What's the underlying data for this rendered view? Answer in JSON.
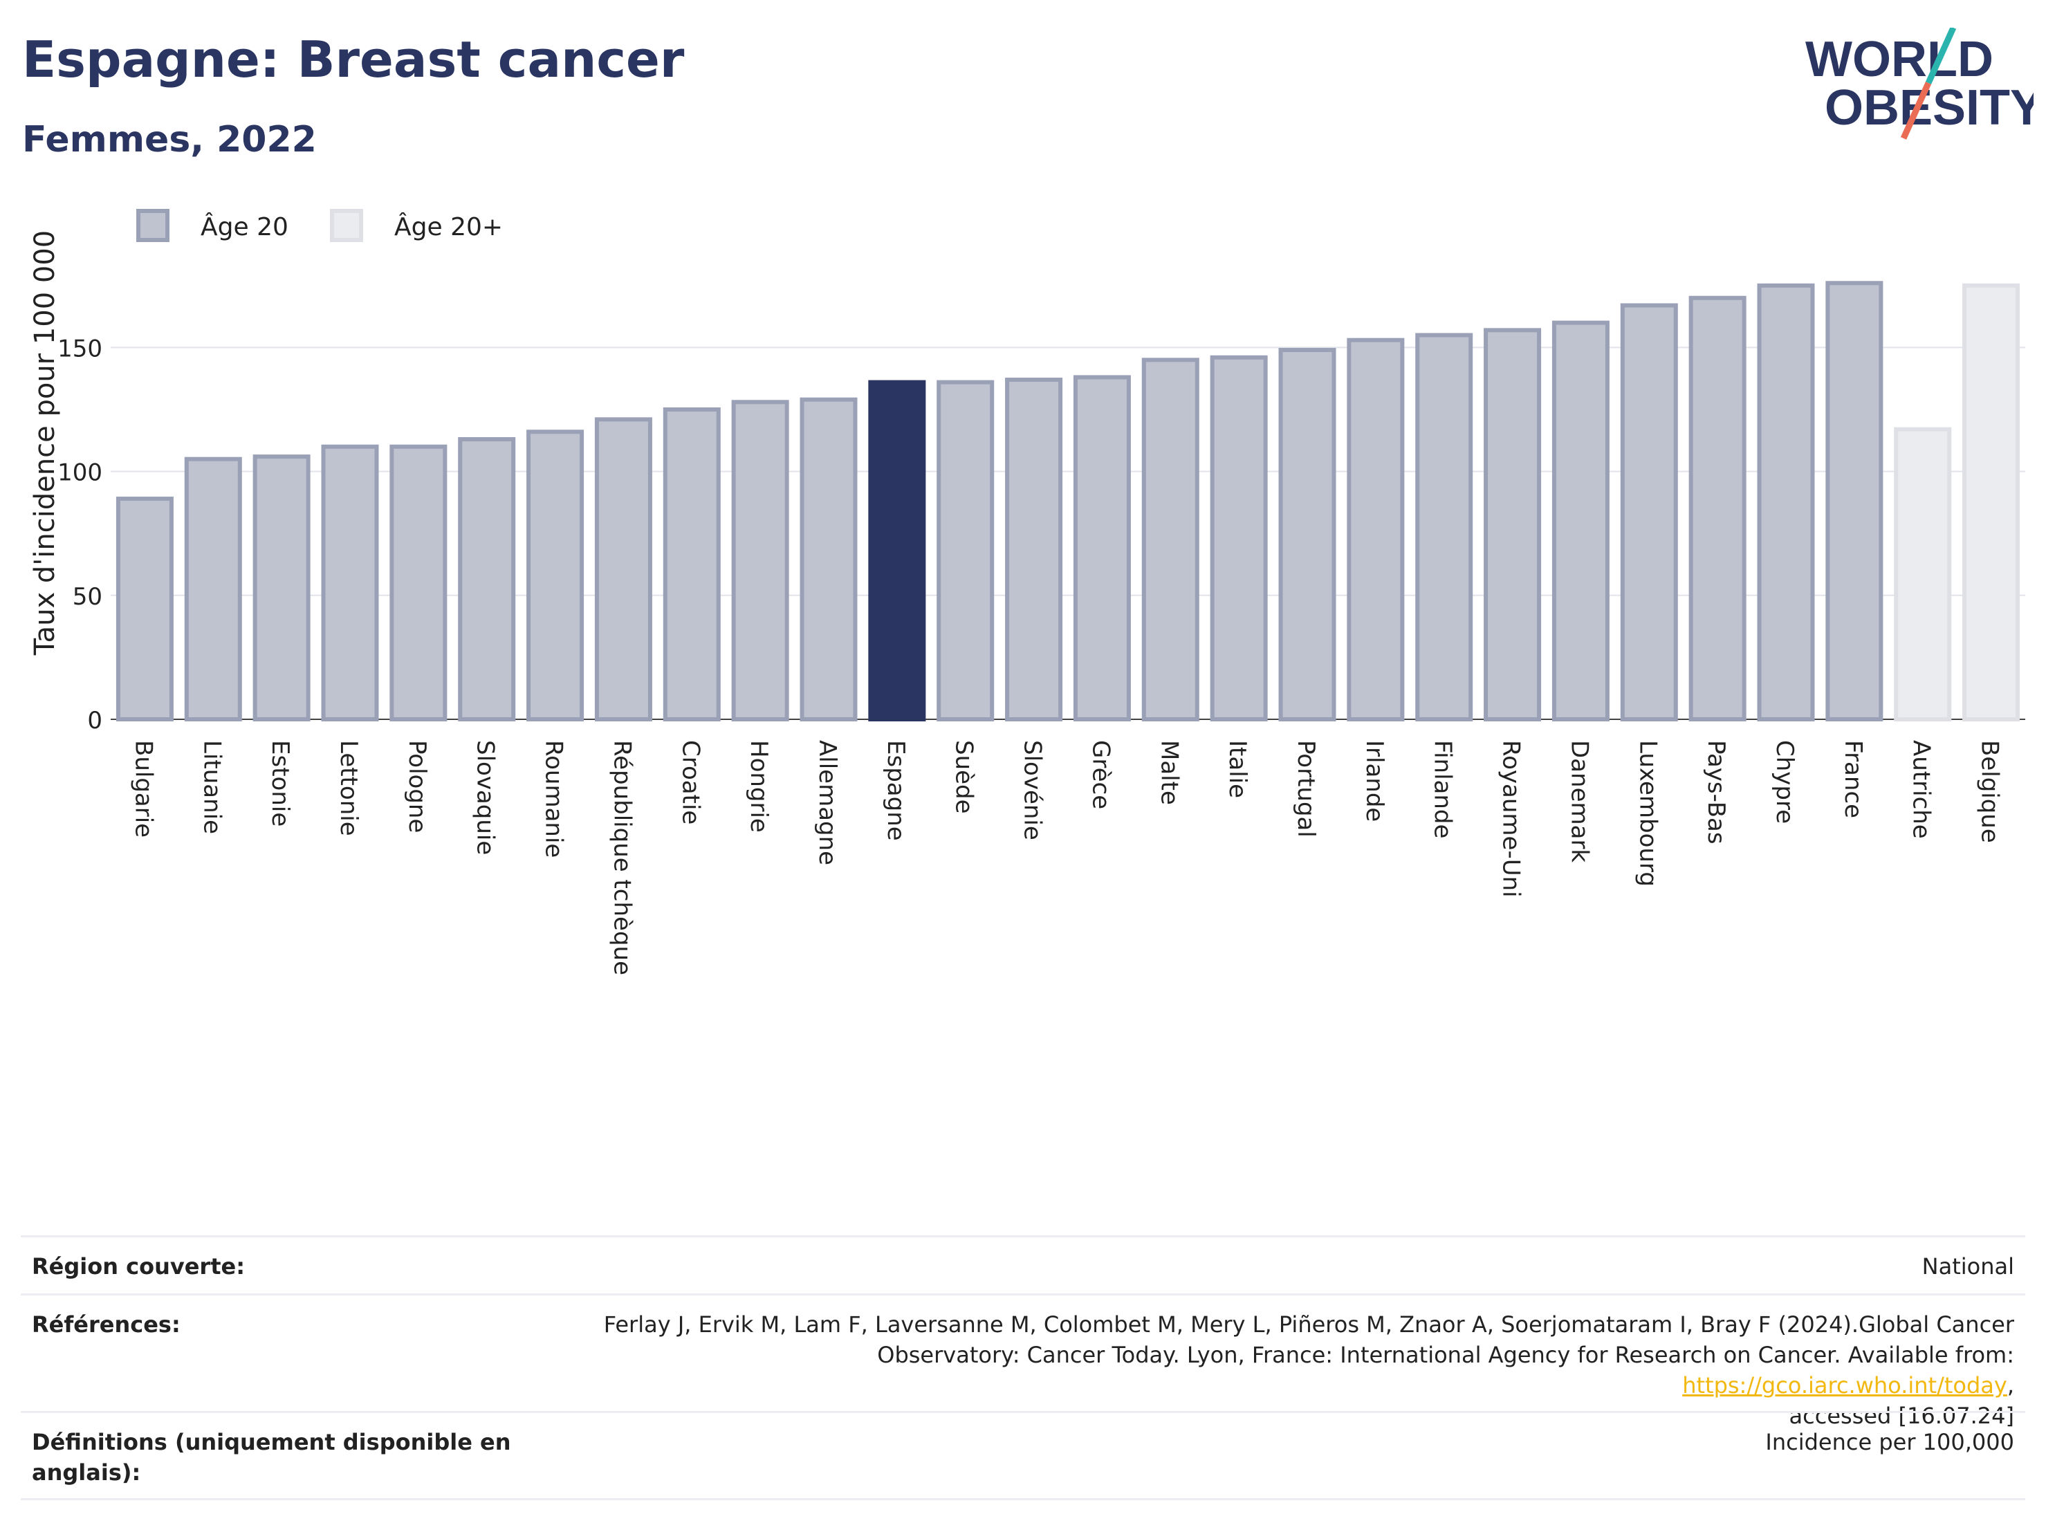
{
  "header": {
    "title": "Espagne: Breast cancer",
    "subtitle": "Femmes, 2022",
    "logo_line1": "WORLD",
    "logo_line2": "OBESITY"
  },
  "colors": {
    "navy": "#2a3561",
    "bar_fill": "#bfc2cf",
    "bar_stroke": "#9aa0b6",
    "light_fill": "#ebecf0",
    "light_stroke": "#dfe0e6",
    "logo_teal": "#2bb3ad",
    "logo_coral": "#ea6c55"
  },
  "chart_data": {
    "type": "bar",
    "title": "Espagne: Breast cancer",
    "subtitle": "Femmes, 2022",
    "xlabel": "",
    "ylabel": "Taux d'incidence pour 100 000",
    "ylim": [
      0,
      185
    ],
    "yticks": [
      0,
      50,
      100,
      150
    ],
    "grid": true,
    "legend_position": "top-left",
    "legend": [
      "Âge 20",
      "Âge 20+"
    ],
    "highlight": "Espagne",
    "categories": [
      "Bulgarie",
      "Lituanie",
      "Estonie",
      "Lettonie",
      "Pologne",
      "Slovaquie",
      "Roumanie",
      "République tchèque",
      "Croatie",
      "Hongrie",
      "Allemagne",
      "Espagne",
      "Suède",
      "Slovénie",
      "Grèce",
      "Malte",
      "Italie",
      "Portugal",
      "Irlande",
      "Finlande",
      "Royaume-Uni",
      "Danemark",
      "Luxembourg",
      "Pays-Bas",
      "Chypre",
      "France",
      "Autriche",
      "Belgique"
    ],
    "series": [
      {
        "name": "Âge 20",
        "values": [
          89,
          105,
          106,
          110,
          110,
          113,
          116,
          121,
          125,
          128,
          129,
          136,
          136,
          137,
          138,
          145,
          146,
          149,
          153,
          155,
          157,
          160,
          167,
          170,
          175,
          176,
          null,
          null
        ]
      },
      {
        "name": "Âge 20+",
        "values": [
          null,
          null,
          null,
          null,
          null,
          null,
          null,
          null,
          null,
          null,
          null,
          null,
          null,
          null,
          null,
          null,
          null,
          null,
          null,
          null,
          null,
          null,
          null,
          null,
          null,
          null,
          117,
          175
        ]
      }
    ]
  },
  "info": {
    "region_label": "Région couverte:",
    "region_value": "National",
    "references_label": "Références:",
    "references_line1": "Ferlay J, Ervik M, Lam F, Laversanne M, Colombet M, Mery L, Piñeros M, Znaor A, Soerjomataram I, Bray F (2024).Global Cancer",
    "references_line2_prefix": "Observatory: Cancer Today. Lyon, France: International Agency for Research on Cancer. Available from: ",
    "references_link": "https://gco.iarc.who.int/today",
    "references_line2_suffix": ",",
    "references_line3": "accessed [16.07.24]",
    "definitions_label": "Définitions (uniquement disponible en anglais):",
    "definitions_value": "Incidence per 100,000"
  }
}
